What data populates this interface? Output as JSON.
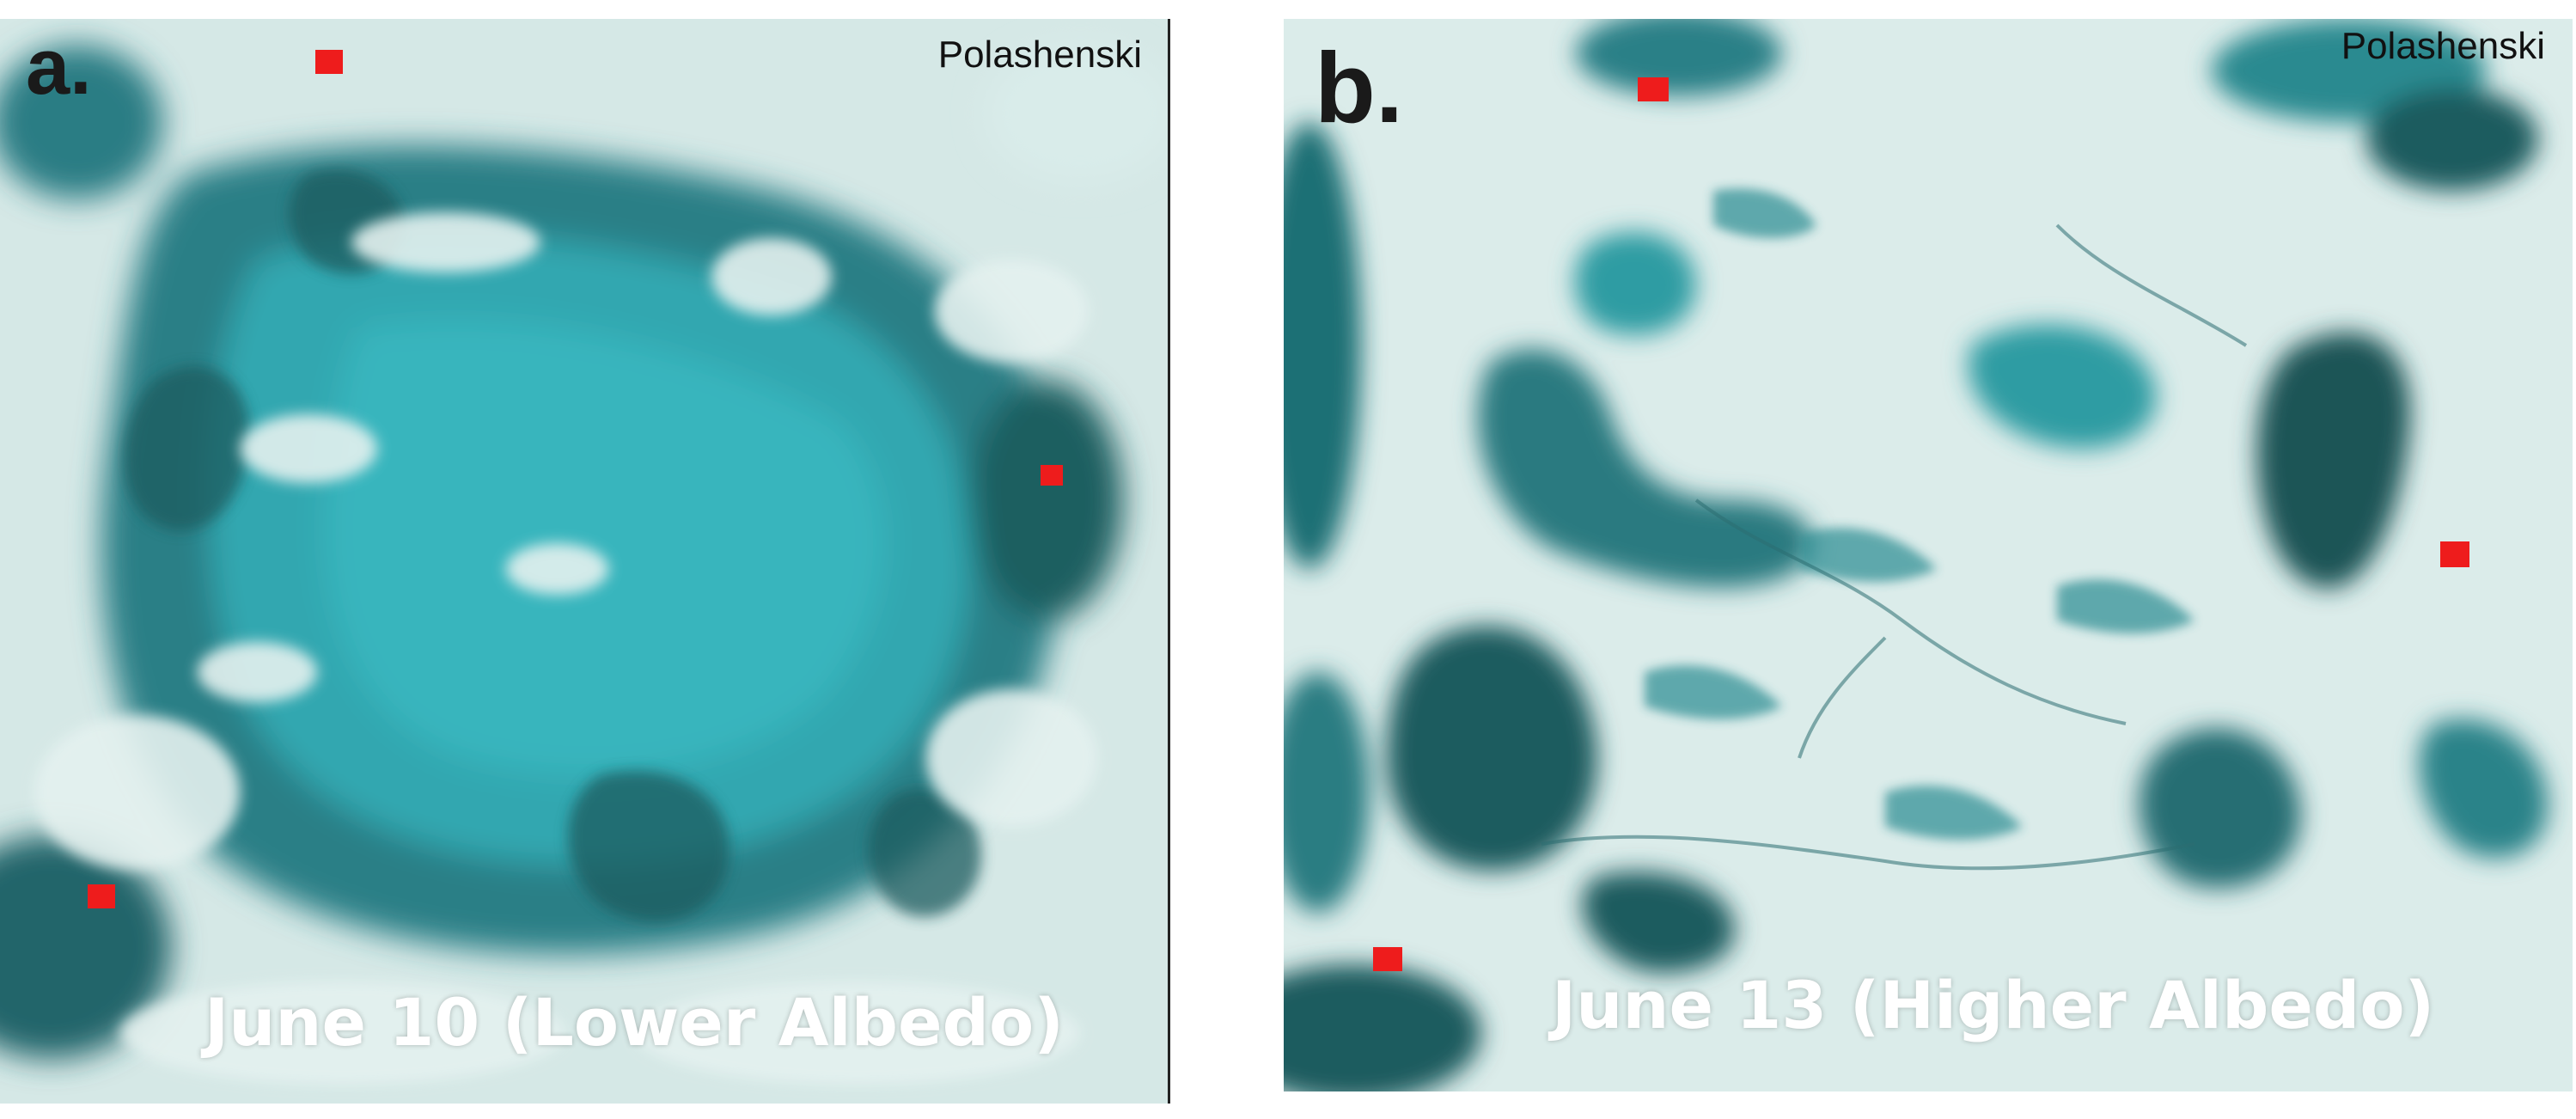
{
  "figure": {
    "panels": [
      {
        "letter": "a.",
        "credit": "Polashenski",
        "caption": "June 10 (Lower Albedo)"
      },
      {
        "letter": "b.",
        "credit": "Polashenski",
        "caption": "June 13 (Higher Albedo)"
      }
    ]
  },
  "colors": {
    "ice": "#dbecea",
    "pond_light": "#2fa6ad",
    "pond_dark": "#1e5e5e",
    "marker": "#ee1c1c"
  }
}
